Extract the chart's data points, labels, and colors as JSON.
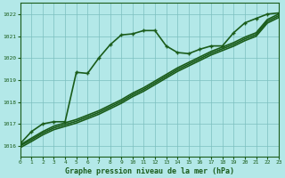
{
  "title": "Graphe pression niveau de la mer (hPa)",
  "bg_color": "#b3e8e8",
  "line_color": "#1a5c1a",
  "grid_color": "#7bbfbf",
  "xlim": [
    0,
    23
  ],
  "ylim": [
    1015.5,
    1022.5
  ],
  "yticks": [
    1016,
    1017,
    1018,
    1019,
    1020,
    1021,
    1022
  ],
  "xticks": [
    0,
    1,
    2,
    3,
    4,
    5,
    6,
    7,
    8,
    9,
    10,
    11,
    12,
    13,
    14,
    15,
    16,
    17,
    18,
    19,
    20,
    21,
    22,
    23
  ],
  "series": [
    {
      "x": [
        0,
        1,
        2,
        3,
        4,
        5,
        6,
        7,
        8,
        9,
        10,
        11,
        12,
        13,
        14,
        15,
        16,
        17,
        18,
        19,
        20,
        21,
        22,
        23
      ],
      "y": [
        1016.1,
        1016.65,
        1017.0,
        1017.1,
        1017.1,
        1019.35,
        1019.3,
        1020.0,
        1020.6,
        1021.05,
        1021.1,
        1021.25,
        1021.25,
        1020.55,
        1020.25,
        1020.2,
        1020.4,
        1020.55,
        1020.55,
        1021.15,
        1021.6,
        1021.8,
        1022.0,
        1022.05
      ],
      "marker": true,
      "lw": 1.2
    },
    {
      "x": [
        0,
        1,
        2,
        3,
        4,
        5,
        6,
        7,
        8,
        9,
        10,
        11,
        12,
        13,
        14,
        15,
        16,
        17,
        18,
        19,
        20,
        21,
        22,
        23
      ],
      "y": [
        1016.05,
        1016.35,
        1016.65,
        1016.9,
        1017.05,
        1017.2,
        1017.4,
        1017.6,
        1017.85,
        1018.1,
        1018.4,
        1018.65,
        1018.95,
        1019.25,
        1019.55,
        1019.8,
        1020.05,
        1020.3,
        1020.5,
        1020.7,
        1020.95,
        1021.15,
        1021.75,
        1022.0
      ],
      "marker": false,
      "lw": 1.2
    },
    {
      "x": [
        0,
        1,
        2,
        3,
        4,
        5,
        6,
        7,
        8,
        9,
        10,
        11,
        12,
        13,
        14,
        15,
        16,
        17,
        18,
        19,
        20,
        21,
        22,
        23
      ],
      "y": [
        1016.0,
        1016.28,
        1016.58,
        1016.82,
        1016.97,
        1017.12,
        1017.32,
        1017.52,
        1017.77,
        1018.02,
        1018.32,
        1018.57,
        1018.87,
        1019.17,
        1019.47,
        1019.72,
        1019.97,
        1020.22,
        1020.42,
        1020.62,
        1020.87,
        1021.07,
        1021.67,
        1021.92
      ],
      "marker": false,
      "lw": 1.2
    },
    {
      "x": [
        0,
        1,
        2,
        3,
        4,
        5,
        6,
        7,
        8,
        9,
        10,
        11,
        12,
        13,
        14,
        15,
        16,
        17,
        18,
        19,
        20,
        21,
        22,
        23
      ],
      "y": [
        1015.92,
        1016.2,
        1016.5,
        1016.74,
        1016.89,
        1017.04,
        1017.24,
        1017.44,
        1017.69,
        1017.94,
        1018.24,
        1018.49,
        1018.79,
        1019.09,
        1019.39,
        1019.64,
        1019.89,
        1020.14,
        1020.34,
        1020.54,
        1020.79,
        1020.99,
        1021.59,
        1021.84
      ],
      "marker": false,
      "lw": 1.2
    }
  ]
}
